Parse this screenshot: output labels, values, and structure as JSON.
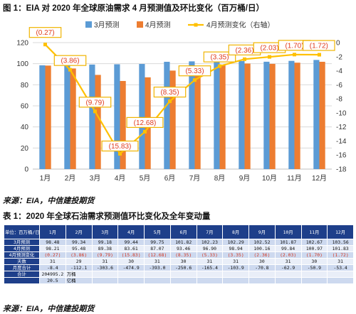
{
  "figure": {
    "title": "图 1：EIA 对 2020 年全球原油需求 4 月预测值及环比变化（百万桶/日）",
    "source": "来源：EIA，中信建投期货"
  },
  "chart_data": {
    "type": "bar",
    "categories": [
      "1月",
      "2月",
      "3月",
      "4月",
      "5月",
      "6月",
      "7月",
      "8月",
      "9月",
      "10月",
      "11月",
      "12月"
    ],
    "series": [
      {
        "name": "3月预测",
        "type": "bar",
        "axis": "left",
        "color": "#5b9bd5",
        "values": [
          98.48,
          99.34,
          99.18,
          99.44,
          99.75,
          101.82,
          102.23,
          102.29,
          102.52,
          101.87,
          102.67,
          103.56
        ]
      },
      {
        "name": "4月预测",
        "type": "bar",
        "axis": "left",
        "color": "#ed7d31",
        "values": [
          98.21,
          95.48,
          89.38,
          83.61,
          87.07,
          93.46,
          96.9,
          98.94,
          100.16,
          99.84,
          100.97,
          101.83
        ]
      },
      {
        "name": "4月预测变化（右轴）",
        "type": "line",
        "axis": "right",
        "color": "#ffc000",
        "values": [
          -0.27,
          -3.86,
          -9.79,
          -15.83,
          -12.68,
          -8.35,
          -5.33,
          -3.35,
          -2.36,
          -2.03,
          -1.7,
          -1.72
        ],
        "labels": [
          "(0.27)",
          "(3.86)",
          "(9.79)",
          "(15.83)",
          "(12.68)",
          "(8.35)",
          "(5.33)",
          "(3.35)",
          "(2.36)",
          "(2.03)",
          "(1.70)",
          "(1.72)"
        ]
      }
    ],
    "y_left": {
      "ylim": [
        0,
        120
      ],
      "ticks": [
        "0",
        "20",
        "40",
        "60",
        "80",
        "100",
        "120"
      ]
    },
    "y_right": {
      "ylim": [
        -18,
        0
      ],
      "ticks": [
        "0",
        "-2",
        "-4",
        "-6",
        "-8",
        "-10",
        "-12",
        "-14",
        "-16",
        "-18"
      ]
    },
    "legend_position": "top-right",
    "grid": true,
    "label_color": "#e03c1e"
  },
  "table": {
    "title": "表 1：2020 年全球石油需求预测值环比变化及全年变动量",
    "header_label": "单位：百万桶/日",
    "columns": [
      "1月",
      "2月",
      "3月",
      "4月",
      "5月",
      "6月",
      "7月",
      "8月",
      "9月",
      "10月",
      "11月",
      "12月"
    ],
    "rows": [
      {
        "label": "3月预测",
        "cells": [
          "98.48",
          "99.34",
          "99.18",
          "99.44",
          "99.75",
          "101.82",
          "102.23",
          "102.29",
          "102.52",
          "101.87",
          "102.67",
          "103.56"
        ]
      },
      {
        "label": "4月预测",
        "cells": [
          "98.21",
          "95.48",
          "89.38",
          "83.61",
          "87.07",
          "93.46",
          "96.90",
          "98.94",
          "100.16",
          "99.84",
          "100.97",
          "101.83"
        ]
      },
      {
        "label": "4月预测变化",
        "negative": true,
        "cells": [
          "(0.27)",
          "(3.86)",
          "(9.79)",
          "(15.83)",
          "(12.68)",
          "(8.35)",
          "(5.33)",
          "(3.35)",
          "(2.36)",
          "(2.03)",
          "(1.70)",
          "(1.72)"
        ]
      },
      {
        "label": "天数",
        "cells": [
          "31",
          "29",
          "31",
          "30",
          "31",
          "30",
          "31",
          "31",
          "30",
          "31",
          "30",
          "31"
        ]
      },
      {
        "label": "月度合计",
        "cells": [
          "-8.4",
          "-112.1",
          "-303.6",
          "-474.9",
          "-393.0",
          "-250.6",
          "-165.4",
          "-103.9",
          "-70.8",
          "-62.9",
          "-50.9",
          "-53.4"
        ]
      },
      {
        "label": "合计",
        "cells": [
          "204995.2",
          "万桶",
          "",
          "",
          "",
          "",
          "",
          "",
          "",
          "",
          "",
          ""
        ]
      },
      {
        "label": "",
        "cells": [
          "20.5",
          "亿桶",
          "",
          "",
          "",
          "",
          "",
          "",
          "",
          "",
          "",
          ""
        ]
      }
    ],
    "source": "来源：EIA，中信建投期货"
  }
}
